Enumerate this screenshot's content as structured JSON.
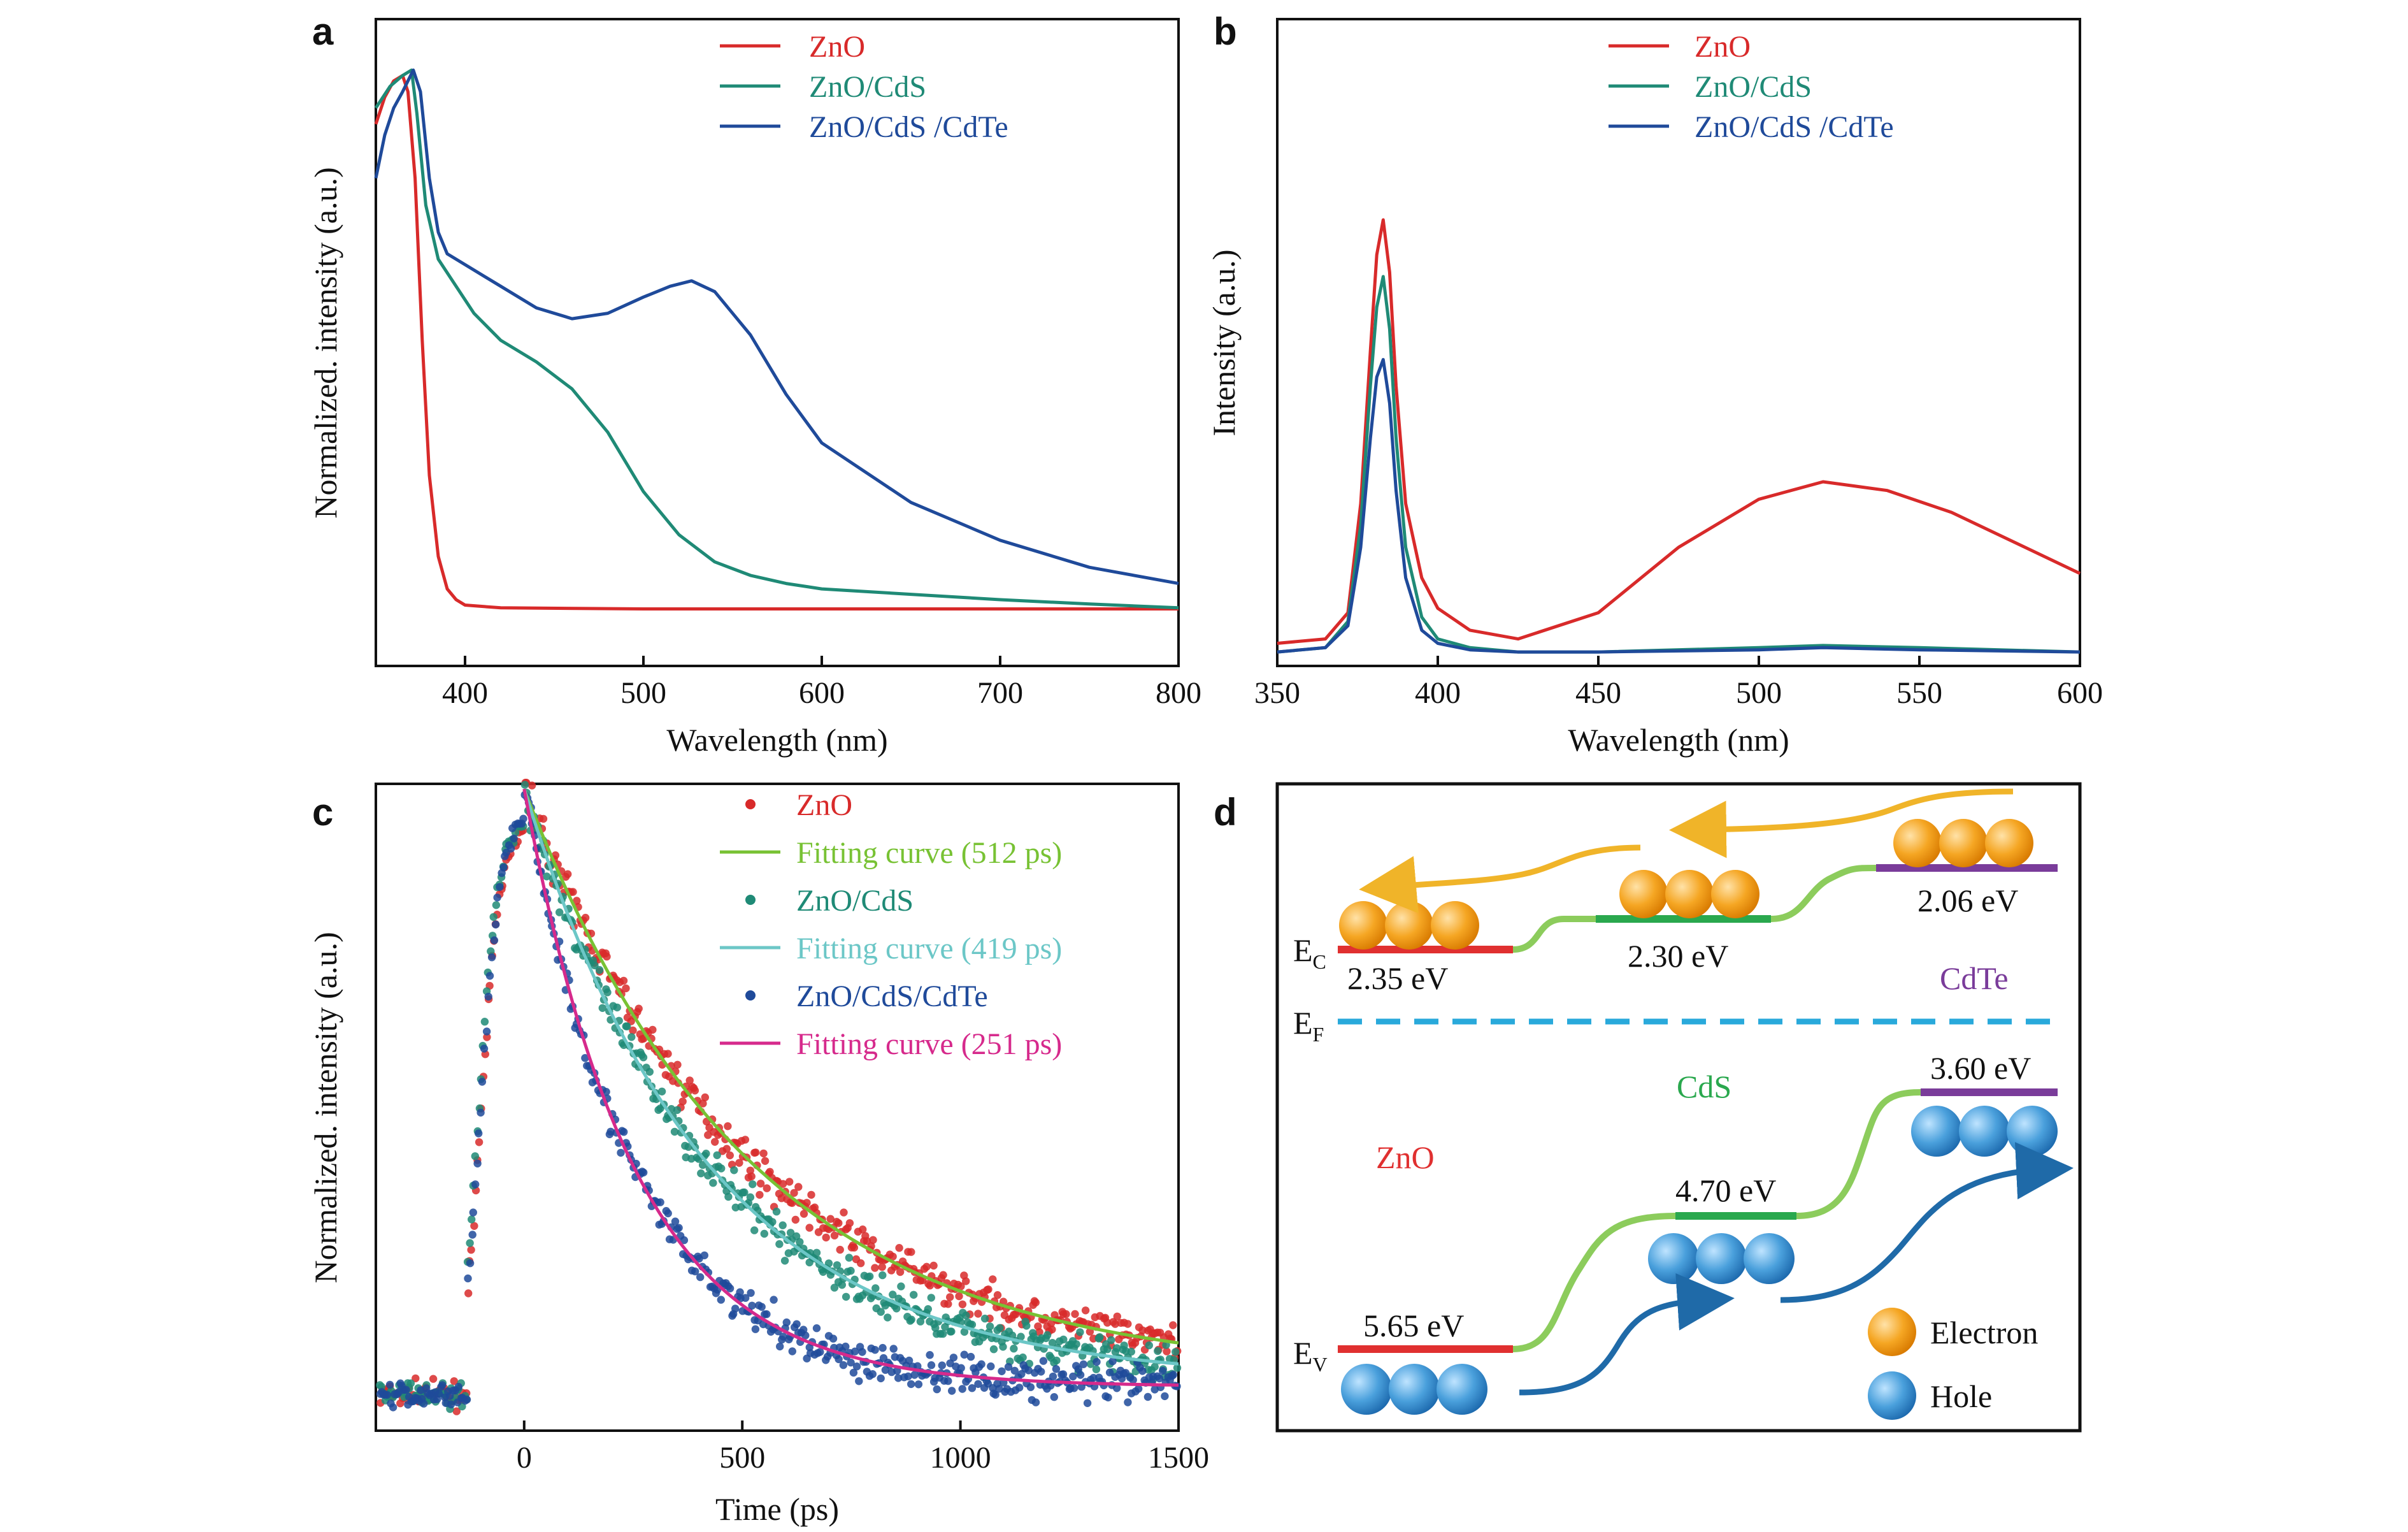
{
  "colors": {
    "zno": "#d82a2a",
    "zno_cds": "#1f8a76",
    "zno_cds_cdte": "#1f4a9a",
    "fit_512": "#78c234",
    "fit_419": "#6cc7c7",
    "fit_251": "#d62a8c",
    "bar_zno": "#e03030",
    "bar_cds": "#2aa84e",
    "bar_cdte": "#7a3c9a",
    "connector": "#8ccc5c",
    "fermi": "#29a9db",
    "electron_arrow": "#f0b429",
    "hole_arrow": "#1f6aa8",
    "electron": "#f39c12",
    "hole": "#3a8fd0"
  },
  "panels": [
    {
      "id": "a",
      "letter": "a"
    },
    {
      "id": "b",
      "letter": "b"
    },
    {
      "id": "c",
      "letter": "c"
    },
    {
      "id": "d",
      "letter": "d"
    }
  ],
  "chart_data": [
    {
      "panel": "a",
      "type": "line",
      "xlabel": "Wavelength (nm)",
      "ylabel": "Normalized. intensity (a.u.)",
      "xlim": [
        350,
        800
      ],
      "xticks": [
        "400",
        "500",
        "600",
        "700",
        "800"
      ],
      "yticks": false,
      "legend_position": "top-right",
      "series": [
        {
          "name": "ZnO",
          "color_key": "zno",
          "x": [
            350,
            355,
            360,
            365,
            368,
            372,
            376,
            380,
            385,
            390,
            395,
            400,
            420,
            500,
            600,
            700,
            800
          ],
          "y": [
            0.9,
            0.95,
            0.98,
            0.99,
            0.96,
            0.8,
            0.5,
            0.25,
            0.1,
            0.04,
            0.02,
            0.01,
            0.005,
            0.003,
            0.003,
            0.003,
            0.003
          ]
        },
        {
          "name": "ZnO/CdS",
          "color_key": "zno_cds",
          "x": [
            350,
            358,
            365,
            370,
            373,
            378,
            385,
            395,
            405,
            420,
            440,
            460,
            480,
            500,
            520,
            540,
            560,
            580,
            600,
            650,
            700,
            750,
            800
          ],
          "y": [
            0.93,
            0.97,
            0.99,
            1.0,
            0.92,
            0.75,
            0.65,
            0.6,
            0.55,
            0.5,
            0.46,
            0.41,
            0.33,
            0.22,
            0.14,
            0.09,
            0.065,
            0.05,
            0.04,
            0.03,
            0.02,
            0.012,
            0.005
          ]
        },
        {
          "name": "ZnO/CdS /CdTe",
          "color_key": "zno_cds_cdte",
          "x": [
            350,
            355,
            360,
            365,
            371,
            375,
            380,
            385,
            390,
            400,
            420,
            440,
            460,
            480,
            500,
            515,
            527,
            540,
            560,
            580,
            600,
            650,
            700,
            750,
            800
          ],
          "y": [
            0.8,
            0.88,
            0.93,
            0.96,
            1.0,
            0.96,
            0.8,
            0.7,
            0.66,
            0.64,
            0.6,
            0.56,
            0.54,
            0.55,
            0.58,
            0.6,
            0.61,
            0.59,
            0.51,
            0.4,
            0.31,
            0.2,
            0.13,
            0.08,
            0.05
          ]
        }
      ]
    },
    {
      "panel": "b",
      "type": "line",
      "xlabel": "Wavelength (nm)",
      "ylabel": "Intensity (a.u.)",
      "xlim": [
        350,
        600
      ],
      "xticks": [
        "350",
        "400",
        "450",
        "500",
        "550",
        "600"
      ],
      "yticks": false,
      "legend_position": "top-right",
      "series": [
        {
          "name": "ZnO",
          "color_key": "zno",
          "x": [
            350,
            365,
            372,
            376,
            379,
            381,
            383,
            385,
            387,
            390,
            395,
            400,
            410,
            425,
            450,
            475,
            500,
            520,
            540,
            560,
            580,
            600
          ],
          "y": [
            0.03,
            0.04,
            0.1,
            0.35,
            0.7,
            0.92,
            1.0,
            0.88,
            0.62,
            0.35,
            0.18,
            0.11,
            0.06,
            0.04,
            0.1,
            0.25,
            0.36,
            0.4,
            0.38,
            0.33,
            0.26,
            0.19
          ]
        },
        {
          "name": "ZnO/CdS",
          "color_key": "zno_cds",
          "x": [
            350,
            365,
            372,
            376,
            379,
            381,
            383,
            385,
            387,
            390,
            395,
            400,
            410,
            425,
            450,
            500,
            520,
            550,
            600
          ],
          "y": [
            0.01,
            0.02,
            0.08,
            0.3,
            0.62,
            0.8,
            0.87,
            0.75,
            0.5,
            0.25,
            0.09,
            0.04,
            0.02,
            0.01,
            0.01,
            0.02,
            0.025,
            0.02,
            0.01
          ]
        },
        {
          "name": "ZnO/CdS /CdTe",
          "color_key": "zno_cds_cdte",
          "x": [
            350,
            365,
            372,
            376,
            379,
            381,
            383,
            385,
            387,
            390,
            395,
            400,
            410,
            425,
            450,
            500,
            520,
            550,
            600
          ],
          "y": [
            0.01,
            0.02,
            0.07,
            0.25,
            0.5,
            0.64,
            0.68,
            0.58,
            0.38,
            0.18,
            0.06,
            0.03,
            0.015,
            0.01,
            0.01,
            0.015,
            0.02,
            0.015,
            0.01
          ]
        }
      ]
    },
    {
      "panel": "c",
      "type": "scatter",
      "xlabel": "Time (ps)",
      "ylabel": "Normalized. intensity (a.u.)",
      "xlim": [
        -340,
        1500
      ],
      "xticks": [
        "0",
        "500",
        "1000",
        "1500"
      ],
      "yticks": false,
      "legend_position": "top-right",
      "series": [
        {
          "name": "ZnO",
          "kind": "points",
          "color_key": "zno",
          "rise_center": -100,
          "rise_width": 22,
          "tau": 512,
          "tail": 0.06
        },
        {
          "name": "Fitting curve (512 ps)",
          "kind": "line",
          "color_key": "fit_512",
          "tau": 512,
          "tail": 0.06
        },
        {
          "name": "ZnO/CdS",
          "kind": "points",
          "color_key": "zno_cds",
          "rise_center": -105,
          "rise_width": 22,
          "tau": 419,
          "tail": 0.05
        },
        {
          "name": "Fitting curve (419 ps)",
          "kind": "line",
          "color_key": "fit_419",
          "tau": 419,
          "tail": 0.05
        },
        {
          "name": "ZnO/CdS/CdTe",
          "kind": "points",
          "color_key": "zno_cds_cdte",
          "rise_center": -100,
          "rise_width": 22,
          "tau": 251,
          "tail": 0.04
        },
        {
          "name": "Fitting curve (251 ps)",
          "kind": "line",
          "color_key": "fit_251",
          "tau": 251,
          "tail": 0.04
        }
      ]
    },
    {
      "panel": "d",
      "type": "diagram",
      "labels": {
        "ec": "E",
        "ec_sub": "C",
        "ef": "E",
        "ef_sub": "F",
        "ev": "E",
        "ev_sub": "V",
        "zno": "ZnO",
        "cds": "CdS",
        "cdte": "CdTe",
        "zno_cb": "2.35 eV",
        "cds_cb": "2.30 eV",
        "cdte_cb": "2.06 eV",
        "zno_vb": "5.65 eV",
        "cds_vb": "4.70 eV",
        "cdte_vb": "3.60 eV",
        "legend_electron": "Electron",
        "legend_hole": "Hole"
      }
    }
  ]
}
